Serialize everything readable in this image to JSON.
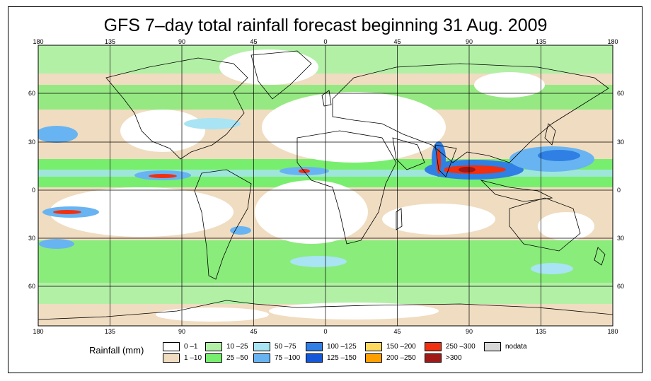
{
  "title": "GFS 7–day total rainfall forecast beginning 31 Aug. 2009",
  "axes": {
    "lon_ticks": [
      "180",
      "135",
      "90",
      "45",
      "0",
      "45",
      "90",
      "135",
      "180"
    ],
    "lat_ticks": [
      "60",
      "30",
      "0",
      "30",
      "60"
    ]
  },
  "legend": {
    "title": "Rainfall (mm)",
    "items": [
      {
        "label": "0 –1",
        "color": "#ffffff"
      },
      {
        "label": "1 –10",
        "color": "#f0dcc0"
      },
      {
        "label": "10 –25",
        "color": "#b2f0a6"
      },
      {
        "label": "25 –50",
        "color": "#78ee6e"
      },
      {
        "label": "50 –75",
        "color": "#a8e4f4"
      },
      {
        "label": "75 –100",
        "color": "#68b4f2"
      },
      {
        "label": "100 –125",
        "color": "#2f7fe4"
      },
      {
        "label": "125 –150",
        "color": "#1457d8"
      },
      {
        "label": "150 –200",
        "color": "#ffd860"
      },
      {
        "label": "200 –250",
        "color": "#ffa000"
      },
      {
        "label": "250 –300",
        "color": "#f03010"
      },
      {
        "label": ">300",
        "color": "#a01818"
      },
      {
        "label": "nodata",
        "color": "#d8d8d8"
      }
    ]
  },
  "colors": {
    "land_outline": "#000000",
    "grid": "#000000"
  }
}
